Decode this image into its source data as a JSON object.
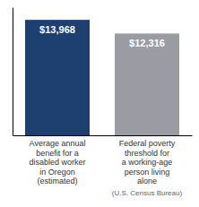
{
  "chart_data": {
    "type": "bar",
    "categories": [
      "Average annual\nbenefit for a\ndisabled worker\nin Oregon\n(estimated)",
      "Federal poverty\nthreshold for\na working-age\nperson living\nalone"
    ],
    "values": [
      13968,
      12316
    ],
    "value_labels": [
      "$13,968",
      "$12,316"
    ],
    "colors": [
      "#1e4070",
      "#9b9ba3"
    ],
    "ylim": [
      0,
      15500
    ],
    "data_labels": true,
    "tick_labels": false,
    "annotations": [
      "(U.S. Census Bureau)"
    ]
  }
}
